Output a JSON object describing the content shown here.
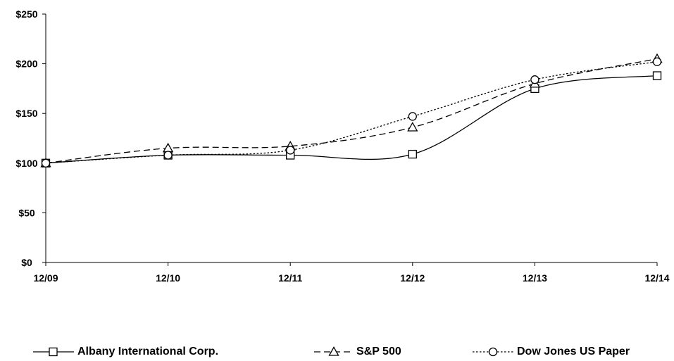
{
  "chart_data": {
    "type": "line",
    "title": "",
    "xlabel": "",
    "ylabel": "",
    "categories": [
      "12/09",
      "12/10",
      "12/11",
      "12/12",
      "12/13",
      "12/14"
    ],
    "y_ticks": [
      "$0",
      "$50",
      "$100",
      "$150",
      "$200",
      "$250"
    ],
    "y_tick_values": [
      0,
      50,
      100,
      150,
      200,
      250
    ],
    "ylim": [
      0,
      250
    ],
    "grid": false,
    "legend_position": "bottom",
    "series": [
      {
        "name": "Albany International Corp.",
        "values": [
          100,
          108,
          108,
          109,
          175,
          188
        ],
        "line_style": "solid",
        "marker": "square",
        "color": "#000000"
      },
      {
        "name": "S&P 500",
        "values": [
          100,
          115,
          117,
          136,
          180,
          205
        ],
        "line_style": "dashed",
        "marker": "triangle",
        "color": "#000000"
      },
      {
        "name": "Dow Jones US Paper",
        "values": [
          100,
          108,
          113,
          147,
          184,
          202
        ],
        "line_style": "dotted",
        "marker": "circle",
        "color": "#000000"
      }
    ]
  }
}
